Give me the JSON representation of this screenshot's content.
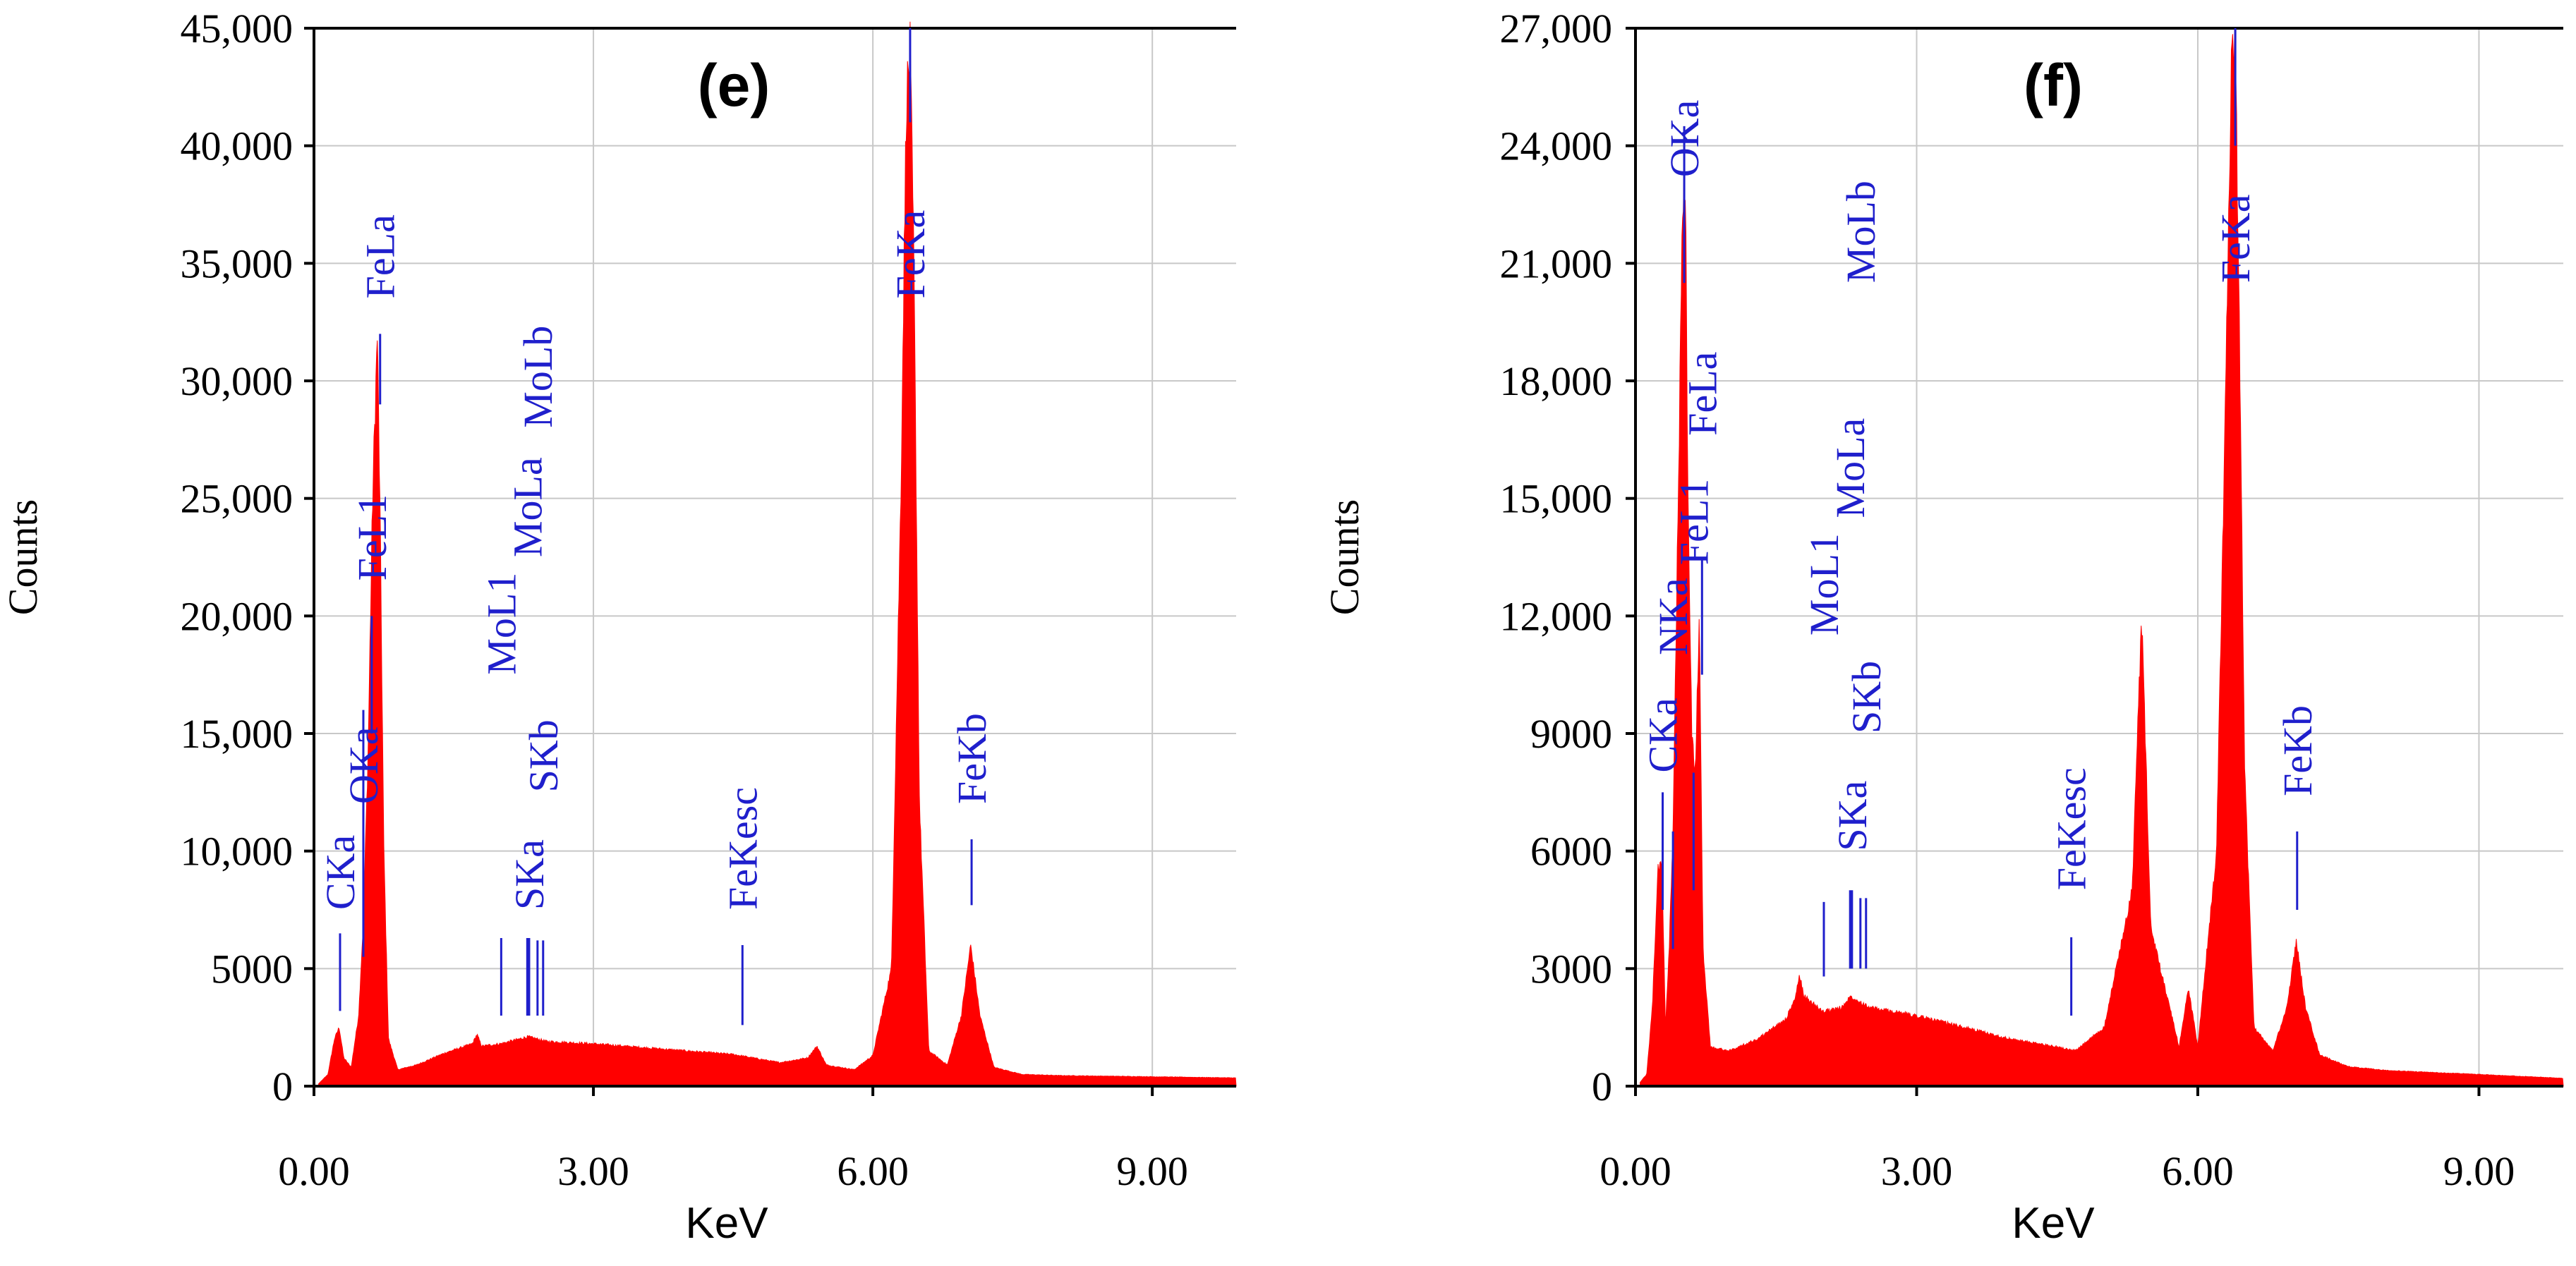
{
  "chart_data": [
    {
      "type": "area",
      "panel_label": "(e)",
      "xlabel": "KeV",
      "ylabel": "Counts",
      "xlim": [
        0,
        9.9
      ],
      "ylim": [
        0,
        45000
      ],
      "x_ticks": [
        0,
        3,
        6,
        9
      ],
      "x_tick_labels": [
        "0.00",
        "3.00",
        "6.00",
        "9.00"
      ],
      "y_ticks": [
        0,
        5000,
        10000,
        15000,
        20000,
        25000,
        30000,
        35000,
        40000,
        45000
      ],
      "y_tick_labels": [
        "0",
        "5000",
        "10,000",
        "15,000",
        "20,000",
        "25,000",
        "30,000",
        "35,000",
        "40,000",
        "45,000"
      ],
      "series_color": "#ff0000",
      "marker_color": "#1f1fcc",
      "spectrum": {
        "x": [
          0.05,
          0.15,
          0.22,
          0.27,
          0.32,
          0.4,
          0.48,
          0.53,
          0.58,
          0.63,
          0.68,
          0.71,
          0.75,
          0.8,
          0.9,
          1.1,
          1.4,
          1.7,
          1.75,
          1.8,
          2.0,
          2.3,
          2.5,
          3.0,
          3.5,
          4.0,
          4.5,
          5.0,
          5.3,
          5.4,
          5.5,
          5.8,
          5.9,
          6.0,
          6.2,
          6.3,
          6.36,
          6.4,
          6.44,
          6.5,
          6.6,
          6.8,
          6.95,
          7.05,
          7.15,
          7.3,
          7.6,
          8.0,
          9.0,
          9.9
        ],
        "y": [
          100,
          500,
          2000,
          2500,
          1200,
          800,
          3000,
          7000,
          14000,
          25000,
          32000,
          24000,
          10000,
          2000,
          700,
          900,
          1400,
          1800,
          2200,
          1700,
          1800,
          2100,
          1900,
          1800,
          1650,
          1500,
          1350,
          1000,
          1200,
          1700,
          900,
          700,
          1000,
          1300,
          5000,
          25000,
          42000,
          44000,
          35000,
          12000,
          1500,
          900,
          3000,
          6000,
          3000,
          800,
          500,
          450,
          400,
          350
        ]
      },
      "peak_labels": [
        {
          "text": "CKa",
          "x": 0.28,
          "marker_top": 6500,
          "marker_bottom": 3200,
          "label_base": 7500
        },
        {
          "text": "OKa",
          "x": 0.53,
          "marker_top": 16000,
          "marker_bottom": 5500,
          "label_base": 12000
        },
        {
          "text": "FeL1",
          "x": 0.62,
          "marker_top": 20000,
          "marker_bottom": 15000,
          "label_base": 21500
        },
        {
          "text": "FeLa",
          "x": 0.71,
          "marker_top": 32000,
          "marker_bottom": 29000,
          "label_base": 33500
        },
        {
          "text": "MoL1",
          "x": 2.01,
          "marker_top": 6300,
          "marker_bottom": 3000,
          "label_base": 17500
        },
        {
          "text": "SKa",
          "x": 2.31,
          "marker_top": 6300,
          "marker_bottom": 3000,
          "label_base": 7500
        },
        {
          "text": "MoLa",
          "x": 2.29,
          "marker_top": 6300,
          "marker_bottom": 3000,
          "label_base": 22500
        },
        {
          "text": "SKb",
          "x": 2.46,
          "marker_top": 6200,
          "marker_bottom": 3000,
          "label_base": 12500
        },
        {
          "text": "MoLb",
          "x": 2.4,
          "marker_top": 6200,
          "marker_bottom": 3000,
          "label_base": 28000
        },
        {
          "text": "FeKesc",
          "x": 4.6,
          "marker_top": 6000,
          "marker_bottom": 2600,
          "label_base": 7500
        },
        {
          "text": "FeKa",
          "x": 6.4,
          "marker_top": 45000,
          "marker_bottom": 41000,
          "label_base": 33500
        },
        {
          "text": "FeKb",
          "x": 7.06,
          "marker_top": 10500,
          "marker_bottom": 7700,
          "label_base": 12000
        }
      ]
    },
    {
      "type": "area",
      "panel_label": "(f)",
      "xlabel": "KeV",
      "ylabel": "Counts",
      "xlim": [
        0,
        9.9
      ],
      "ylim": [
        0,
        27000
      ],
      "x_ticks": [
        0,
        3,
        6,
        9
      ],
      "x_tick_labels": [
        "0.00",
        "3.00",
        "6.00",
        "9.00"
      ],
      "y_ticks": [
        0,
        3000,
        6000,
        9000,
        12000,
        15000,
        18000,
        21000,
        24000,
        27000
      ],
      "y_tick_labels": [
        "0",
        "3000",
        "6000",
        "9000",
        "12,000",
        "15,000",
        "18,000",
        "21,000",
        "24,000",
        "27,000"
      ],
      "series_color": "#ff0000",
      "marker_color": "#1f1fcc",
      "spectrum": {
        "x": [
          0.05,
          0.12,
          0.18,
          0.24,
          0.28,
          0.32,
          0.36,
          0.4,
          0.45,
          0.5,
          0.53,
          0.56,
          0.6,
          0.64,
          0.68,
          0.72,
          0.8,
          1.0,
          1.3,
          1.6,
          1.7,
          1.75,
          1.8,
          2.0,
          2.2,
          2.3,
          2.5,
          3.0,
          3.5,
          4.0,
          4.5,
          4.7,
          5.0,
          5.3,
          5.4,
          5.5,
          5.8,
          5.9,
          6.0,
          6.2,
          6.3,
          6.36,
          6.4,
          6.44,
          6.5,
          6.6,
          6.8,
          6.95,
          7.05,
          7.15,
          7.3,
          7.6,
          8.0,
          9.0,
          9.9
        ],
        "y": [
          100,
          300,
          2000,
          5500,
          5800,
          1500,
          3500,
          6500,
          14000,
          22000,
          23500,
          15000,
          9000,
          8000,
          12000,
          3500,
          1000,
          900,
          1200,
          1700,
          2200,
          2800,
          2300,
          1900,
          2000,
          2300,
          2000,
          1800,
          1500,
          1200,
          1000,
          900,
          1500,
          5000,
          12000,
          4000,
          1000,
          2500,
          1000,
          6000,
          18000,
          26000,
          26500,
          20000,
          8000,
          1500,
          900,
          2000,
          3700,
          2000,
          800,
          500,
          400,
          300,
          200
        ]
      },
      "peak_labels": [
        {
          "text": "CKa",
          "x": 0.29,
          "marker_top": 7500,
          "marker_bottom": 4500,
          "label_base": 8000
        },
        {
          "text": "NKa",
          "x": 0.4,
          "marker_top": 6500,
          "marker_bottom": 3500,
          "label_base": 11000
        },
        {
          "text": "OKa",
          "x": 0.52,
          "marker_top": 24500,
          "marker_bottom": 20500,
          "label_base": 23200
        },
        {
          "text": "FeL1",
          "x": 0.62,
          "marker_top": 8000,
          "marker_bottom": 5000,
          "label_base": 13300
        },
        {
          "text": "FeLa",
          "x": 0.71,
          "marker_top": 13500,
          "marker_bottom": 10500,
          "label_base": 16600
        },
        {
          "text": "MoL1",
          "x": 2.01,
          "marker_top": 4700,
          "marker_bottom": 2800,
          "label_base": 11500
        },
        {
          "text": "SKa",
          "x": 2.31,
          "marker_top": 5000,
          "marker_bottom": 3000,
          "label_base": 6000
        },
        {
          "text": "MoLa",
          "x": 2.29,
          "marker_top": 5000,
          "marker_bottom": 3000,
          "label_base": 14500
        },
        {
          "text": "SKb",
          "x": 2.46,
          "marker_top": 4800,
          "marker_bottom": 3000,
          "label_base": 9000
        },
        {
          "text": "MoLb",
          "x": 2.4,
          "marker_top": 4800,
          "marker_bottom": 3000,
          "label_base": 20500
        },
        {
          "text": "FeKesc",
          "x": 4.65,
          "marker_top": 3800,
          "marker_bottom": 1800,
          "label_base": 5000
        },
        {
          "text": "FeKa",
          "x": 6.4,
          "marker_top": 27000,
          "marker_bottom": 24000,
          "label_base": 20500
        },
        {
          "text": "FeKb",
          "x": 7.06,
          "marker_top": 6500,
          "marker_bottom": 4500,
          "label_base": 7400
        }
      ]
    }
  ]
}
